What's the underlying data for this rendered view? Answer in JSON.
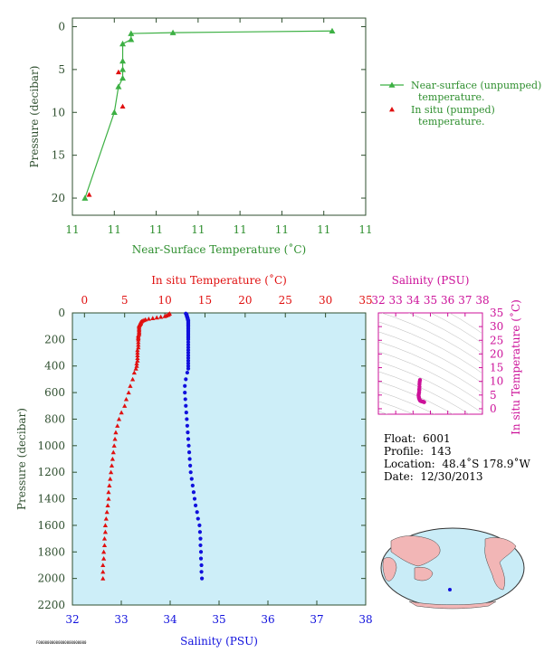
{
  "colors": {
    "green": "#3cb043",
    "green_text": "#2f8f2f",
    "red": "#e01010",
    "blue": "#1010dd",
    "magenta": "#cc1199",
    "dark_axis": "#2f4f2f",
    "panel_bg": "#cdeef8"
  },
  "chart_data": [
    {
      "type": "line",
      "id": "near-surface",
      "xlabel": "Near-Surface Temperature (˚C)",
      "ylabel": "Pressure (decibar)",
      "x_tick_labels": [
        "11",
        "11",
        "11",
        "11",
        "11",
        "11",
        "11",
        "11"
      ],
      "y_ticks": [
        0,
        5,
        10,
        15,
        20
      ],
      "xlim": [
        11.0,
        11.7
      ],
      "ylim": [
        22,
        -1
      ],
      "legend_position": "right",
      "series": [
        {
          "name": "Near-surface (unpumped) temperature.",
          "marker": "triangle",
          "color": "green",
          "x": [
            11.62,
            11.24,
            11.14,
            11.14,
            11.12,
            11.12,
            11.12,
            11.12,
            11.11,
            11.1,
            11.03
          ],
          "y": [
            0.5,
            0.7,
            0.8,
            1.5,
            2.0,
            4.0,
            5.0,
            6.0,
            7.0,
            10.0,
            20.0
          ]
        },
        {
          "name": "In situ (pumped) temperature.",
          "marker": "triangle",
          "color": "red",
          "x": [
            11.11,
            11.12,
            11.04
          ],
          "y": [
            5.3,
            9.3,
            19.6
          ]
        }
      ]
    },
    {
      "type": "line",
      "id": "temperature-salinity-profile",
      "top_xlabel": "In situ Temperature (˚C)",
      "bottom_xlabel": "Salinity (PSU)",
      "ylabel": "Pressure (decibar)",
      "temp_ticks": [
        0,
        5,
        10,
        15,
        20,
        25,
        30,
        35
      ],
      "temp_lim": [
        -1.5,
        35
      ],
      "sal_ticks": [
        32,
        33,
        34,
        35,
        36,
        37,
        38
      ],
      "sal_lim": [
        32,
        38
      ],
      "y_ticks": [
        0,
        200,
        400,
        600,
        800,
        1000,
        1200,
        1400,
        1600,
        1800,
        2000,
        2200
      ],
      "ylim": [
        0,
        2200
      ],
      "series": [
        {
          "name": "temperature",
          "color": "red",
          "marker": "triangle",
          "axis": "temperature",
          "pressure": [
            5,
            10,
            15,
            20,
            25,
            30,
            35,
            40,
            45,
            50,
            55,
            60,
            65,
            70,
            75,
            80,
            85,
            90,
            95,
            100,
            110,
            120,
            130,
            140,
            150,
            160,
            170,
            180,
            190,
            200,
            220,
            240,
            260,
            280,
            300,
            320,
            340,
            360,
            380,
            400,
            420,
            450,
            500,
            550,
            600,
            650,
            700,
            750,
            800,
            850,
            900,
            950,
            1000,
            1050,
            1100,
            1150,
            1200,
            1250,
            1300,
            1350,
            1400,
            1450,
            1500,
            1550,
            1600,
            1650,
            1700,
            1750,
            1800,
            1850,
            1900,
            1950,
            2000
          ],
          "values": [
            10.6,
            10.5,
            10.4,
            10.2,
            10.0,
            9.5,
            9.0,
            8.5,
            8.0,
            7.6,
            7.4,
            7.2,
            7.1,
            7.0,
            7.0,
            7.0,
            6.9,
            6.9,
            6.8,
            6.8,
            6.8,
            6.8,
            6.8,
            6.8,
            6.8,
            6.8,
            6.7,
            6.7,
            6.7,
            6.7,
            6.7,
            6.7,
            6.7,
            6.6,
            6.6,
            6.6,
            6.6,
            6.6,
            6.5,
            6.5,
            6.4,
            6.2,
            6.0,
            5.7,
            5.5,
            5.2,
            5.0,
            4.6,
            4.3,
            4.1,
            3.9,
            3.8,
            3.7,
            3.6,
            3.5,
            3.4,
            3.3,
            3.2,
            3.1,
            3.0,
            3.0,
            2.9,
            2.8,
            2.7,
            2.6,
            2.6,
            2.5,
            2.5,
            2.4,
            2.4,
            2.3,
            2.3,
            2.3
          ]
        },
        {
          "name": "salinity",
          "color": "blue",
          "marker": "dot",
          "axis": "salinity",
          "pressure": [
            5,
            10,
            15,
            20,
            25,
            30,
            35,
            40,
            45,
            50,
            55,
            60,
            65,
            70,
            75,
            80,
            85,
            90,
            95,
            100,
            110,
            120,
            130,
            140,
            150,
            160,
            170,
            180,
            190,
            200,
            220,
            240,
            260,
            280,
            300,
            320,
            340,
            360,
            380,
            400,
            420,
            450,
            500,
            550,
            600,
            650,
            700,
            750,
            800,
            850,
            900,
            950,
            1000,
            1050,
            1100,
            1150,
            1200,
            1250,
            1300,
            1350,
            1400,
            1450,
            1500,
            1550,
            1600,
            1650,
            1700,
            1750,
            1800,
            1850,
            1900,
            1950,
            2000
          ],
          "values": [
            34.32,
            34.33,
            34.34,
            34.34,
            34.34,
            34.35,
            34.35,
            34.36,
            34.36,
            34.36,
            34.37,
            34.37,
            34.37,
            34.37,
            34.37,
            34.37,
            34.37,
            34.37,
            34.37,
            34.37,
            34.37,
            34.37,
            34.37,
            34.37,
            34.37,
            34.37,
            34.37,
            34.37,
            34.37,
            34.37,
            34.37,
            34.37,
            34.37,
            34.37,
            34.37,
            34.37,
            34.37,
            34.37,
            34.37,
            34.37,
            34.37,
            34.35,
            34.32,
            34.3,
            34.3,
            34.31,
            34.32,
            34.33,
            34.34,
            34.35,
            34.36,
            34.37,
            34.38,
            34.39,
            34.4,
            34.41,
            34.42,
            34.44,
            34.46,
            34.48,
            34.5,
            34.52,
            34.55,
            34.57,
            34.6,
            34.61,
            34.62,
            34.62,
            34.63,
            34.63,
            34.64,
            34.64,
            34.65
          ]
        }
      ]
    },
    {
      "type": "scatter",
      "id": "ts-diagram",
      "title": "Salinity (PSU)",
      "ylabel": "In situ Temperature (˚C)",
      "x_ticks": [
        32,
        33,
        34,
        35,
        36,
        37,
        38
      ],
      "xlim": [
        32,
        38
      ],
      "y_ticks": [
        0,
        5,
        10,
        15,
        20,
        25,
        30,
        35
      ],
      "ylim": [
        -2,
        35
      ],
      "grid": "density contours",
      "series": [
        {
          "name": "ts",
          "color": "magenta",
          "points": [
            [
              34.4,
              10.5
            ],
            [
              34.38,
              9.8
            ],
            [
              34.37,
              9.0
            ],
            [
              34.37,
              8.0
            ],
            [
              34.36,
              7.2
            ],
            [
              34.36,
              6.8
            ],
            [
              34.35,
              6.0
            ],
            [
              34.33,
              5.4
            ],
            [
              34.32,
              5.0
            ],
            [
              34.33,
              4.4
            ],
            [
              34.34,
              4.0
            ],
            [
              34.36,
              3.6
            ],
            [
              34.38,
              3.3
            ],
            [
              34.4,
              3.0
            ],
            [
              34.44,
              2.8
            ],
            [
              34.5,
              2.7
            ],
            [
              34.56,
              2.6
            ],
            [
              34.6,
              2.5
            ],
            [
              34.64,
              2.4
            ]
          ]
        }
      ]
    }
  ],
  "info": {
    "float_label": "Float:",
    "float_value": "6001",
    "profile_label": "Profile:",
    "profile_value": "143",
    "location_label": "Location:",
    "location_value": "48.4˚S  178.9˚W",
    "date_label": "Date:",
    "date_value": "12/30/2013"
  },
  "footer": "F0000000000000000000000"
}
